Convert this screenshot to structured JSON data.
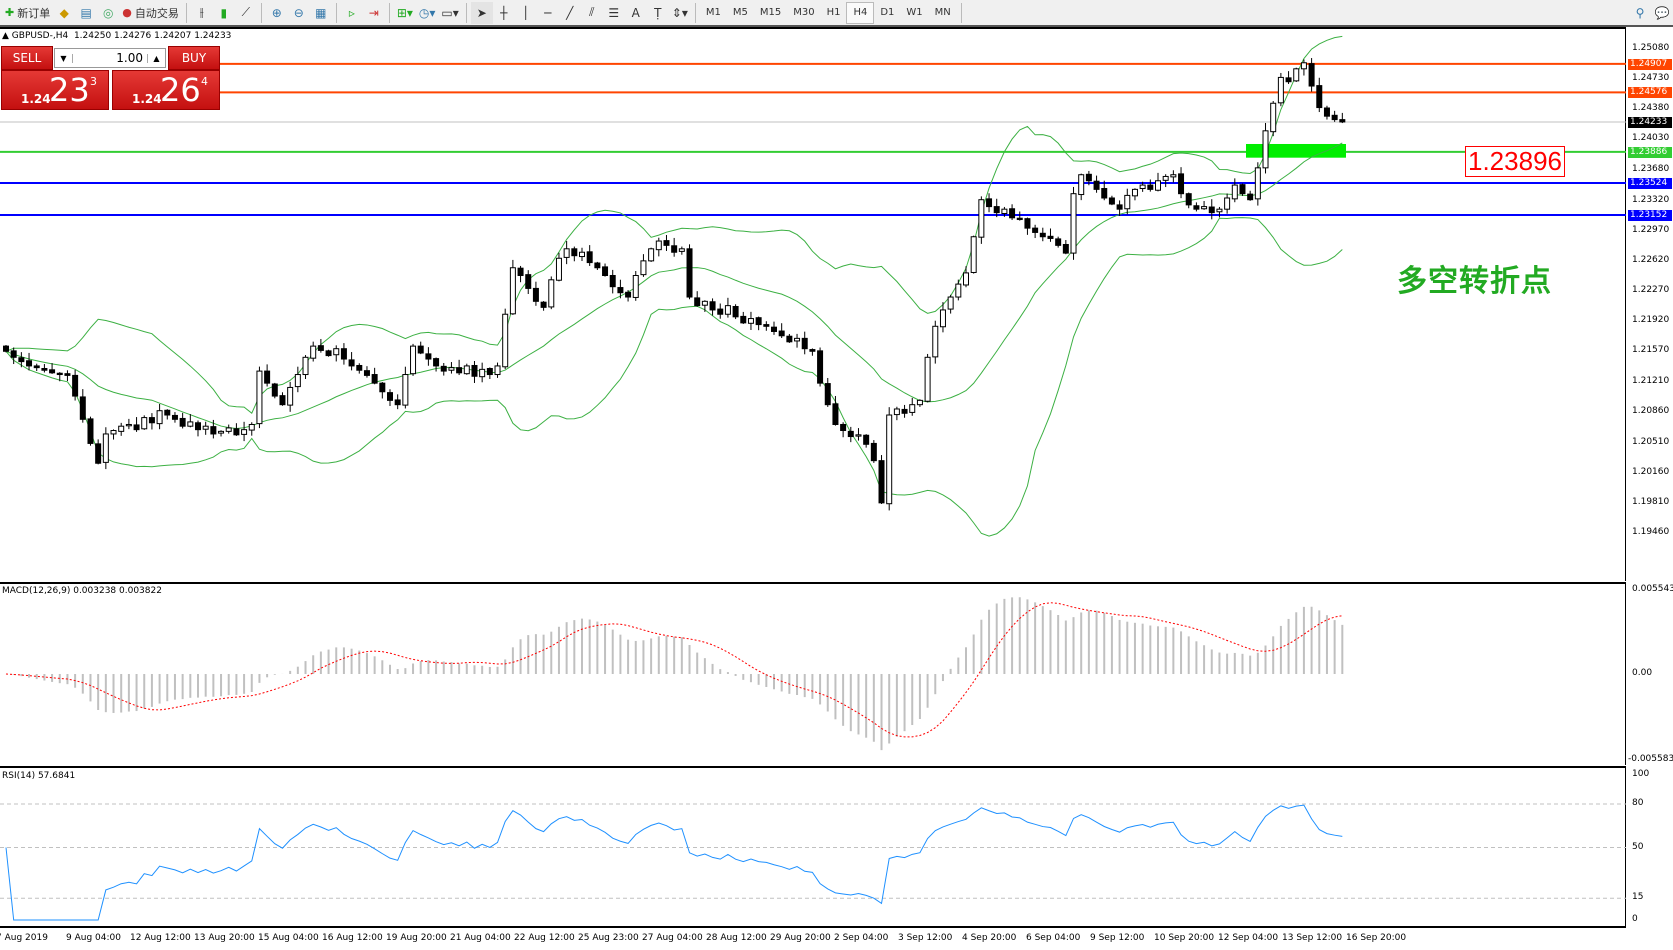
{
  "toolbar": {
    "new_order": "新订单",
    "auto_trading": "自动交易",
    "icons": [
      "new-order-icon",
      "experts-icon",
      "history-center-icon",
      "signals-icon",
      "auto-trading-icon",
      "bar-chart-icon",
      "candlestick-icon",
      "line-chart-icon",
      "zoom-in-icon",
      "zoom-out-icon",
      "tile-windows-icon",
      "chart-shift-icon",
      "autoscroll-icon",
      "indicators-icon",
      "periods-icon",
      "templates-icon",
      "cursor-icon",
      "crosshair-icon",
      "vertical-line-icon",
      "horizontal-line-icon",
      "trendline-icon",
      "fibonacci-fan-icon",
      "fibonacci-retracement-icon",
      "text-icon",
      "text-label-icon",
      "arrows-icon"
    ],
    "timeframes": [
      "M1",
      "M5",
      "M15",
      "M30",
      "H1",
      "H4",
      "D1",
      "W1",
      "MN"
    ],
    "active_timeframe": "H4"
  },
  "header": {
    "symbol": "GBPUSD-,H4",
    "ohlc": "1.24250 1.24276 1.24207 1.24233"
  },
  "trade_panel": {
    "sell_label": "SELL",
    "buy_label": "BUY",
    "lot": "1.00",
    "sell_prefix": "1.24",
    "sell_big": "23",
    "sell_sup": "3",
    "buy_prefix": "1.24",
    "buy_big": "26",
    "buy_sup": "4"
  },
  "price_axis": [
    "1.25080",
    "1.24730",
    "1.24380",
    "1.24030",
    "1.23680",
    "1.23320",
    "1.22970",
    "1.22620",
    "1.22270",
    "1.21920",
    "1.21570",
    "1.21210",
    "1.20860",
    "1.20510",
    "1.20160",
    "1.19810",
    "1.19460"
  ],
  "hlines": [
    {
      "price": 1.24907,
      "label": "1.24907",
      "color": "#ff4500"
    },
    {
      "price": 1.24576,
      "label": "1.24576",
      "color": "#ff4500"
    },
    {
      "price": 1.24233,
      "label": "1.24233",
      "color": "#000000",
      "line": "#c0c0c0"
    },
    {
      "price": 1.23886,
      "label": "1.23886",
      "color": "#32cd32"
    },
    {
      "price": 1.23524,
      "label": "1.23524",
      "color": "#0000ff"
    },
    {
      "price": 1.23152,
      "label": "1.23152",
      "color": "#0000ff"
    }
  ],
  "annotation": {
    "price_text": "1.23896",
    "note": "多空转折点",
    "note_color": "#22aa22",
    "zone_color": "#00ee00"
  },
  "macd": {
    "label": "MACD(12,26,9) 0.003238 0.003822",
    "max": "0.005543",
    "zero": "0.00",
    "min": "-0.005583"
  },
  "rsi": {
    "label": "RSI(14) 57.6841",
    "levels": [
      "100",
      "80",
      "50",
      "15",
      "0"
    ]
  },
  "time_axis": [
    "7 Aug 2019",
    "9 Aug 04:00",
    "12 Aug 12:00",
    "13 Aug 20:00",
    "15 Aug 04:00",
    "16 Aug 12:00",
    "19 Aug 20:00",
    "21 Aug 04:00",
    "22 Aug 12:00",
    "25 Aug 23:00",
    "27 Aug 04:00",
    "28 Aug 12:00",
    "29 Aug 20:00",
    "2 Sep 04:00",
    "3 Sep 12:00",
    "4 Sep 20:00",
    "6 Sep 04:00",
    "9 Sep 12:00",
    "10 Sep 20:00",
    "12 Sep 04:00",
    "13 Sep 12:00",
    "16 Sep 20:00"
  ],
  "chart_data": {
    "type": "candlestick",
    "symbol": "GBPUSD",
    "timeframe": "H4",
    "ylim": [
      1.1946,
      1.2508
    ],
    "indicators": [
      "Bollinger Bands",
      "MACD(12,26,9)",
      "RSI(14)"
    ],
    "close": [
      1.2157,
      1.215,
      1.2145,
      1.214,
      1.2138,
      1.2135,
      1.2132,
      1.213,
      1.2129,
      1.2105,
      1.2078,
      1.205,
      1.2027,
      1.2061,
      1.2065,
      1.207,
      1.2072,
      1.2066,
      1.208,
      1.2074,
      1.2088,
      1.2083,
      1.2078,
      1.207,
      1.2075,
      1.2066,
      1.207,
      1.2061,
      1.2064,
      1.2068,
      1.206,
      1.2066,
      1.2072,
      1.2134,
      1.212,
      1.2105,
      1.2095,
      1.2115,
      1.213,
      1.215,
      1.2163,
      1.2158,
      1.2152,
      1.216,
      1.2148,
      1.214,
      1.2135,
      1.2129,
      1.212,
      1.211,
      1.21,
      1.2095,
      1.213,
      1.2163,
      1.2155,
      1.2148,
      1.214,
      1.2134,
      1.2138,
      1.2132,
      1.214,
      1.2128,
      1.2136,
      1.213,
      1.214,
      1.22,
      1.2254,
      1.2245,
      1.223,
      1.2215,
      1.2208,
      1.224,
      1.2265,
      1.2276,
      1.2268,
      1.2272,
      1.226,
      1.2254,
      1.2245,
      1.2232,
      1.2225,
      1.222,
      1.2245,
      1.2262,
      1.2276,
      1.2285,
      1.228,
      1.2272,
      1.2276,
      1.222,
      1.221,
      1.2215,
      1.2205,
      1.22,
      1.221,
      1.2197,
      1.219,
      1.2195,
      1.2188,
      1.2186,
      1.218,
      1.2175,
      1.2168,
      1.2172,
      1.216,
      1.2157,
      1.212,
      1.2095,
      1.2072,
      1.2065,
      1.2058,
      1.206,
      1.2049,
      1.203,
      1.1981,
      1.2083,
      1.209,
      1.2085,
      1.2095,
      1.21,
      1.215,
      1.2186,
      1.2205,
      1.222,
      1.2235,
      1.2248,
      1.229,
      1.2333,
      1.2325,
      1.2318,
      1.2322,
      1.2312,
      1.231,
      1.23,
      1.2295,
      1.229,
      1.2288,
      1.228,
      1.2271,
      1.234,
      1.2362,
      1.2355,
      1.2345,
      1.2335,
      1.2328,
      1.2322,
      1.2338,
      1.2345,
      1.235,
      1.2345,
      1.2355,
      1.236,
      1.2362,
      1.234,
      1.2327,
      1.2322,
      1.2325,
      1.2318,
      1.2322,
      1.2335,
      1.235,
      1.234,
      1.2333,
      1.237,
      1.2413,
      1.2445,
      1.2475,
      1.247,
      1.2485,
      1.2492,
      1.2465,
      1.244,
      1.243,
      1.2426,
      1.24233
    ]
  }
}
